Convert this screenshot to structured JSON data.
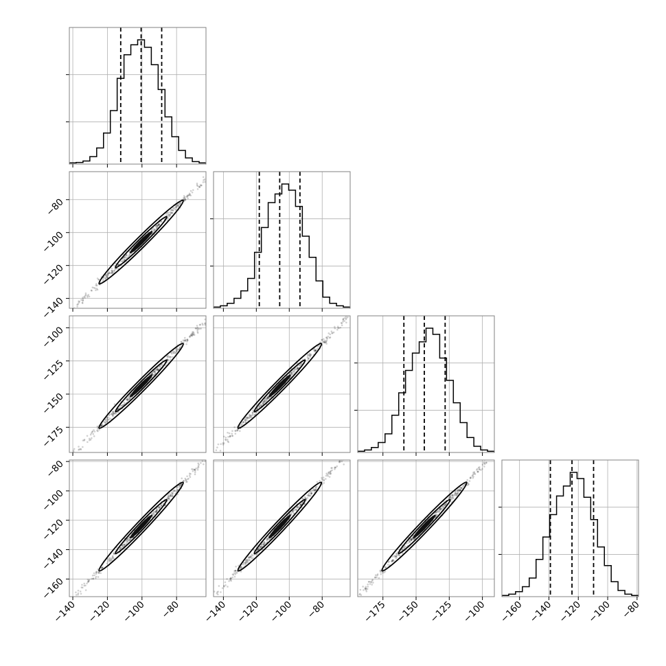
{
  "chart_data": {
    "type": "corner",
    "parameters": [
      {
        "ticks": [
          -140,
          -120,
          -100,
          -80
        ],
        "range": [
          -142,
          -63
        ],
        "quantiles": [
          -112.3,
          -100.5,
          -88.6
        ]
      },
      {
        "ticks": [
          -140,
          -120,
          -100,
          -80
        ],
        "range": [
          -146,
          -63
        ],
        "quantiles": [
          -118.2,
          -105.8,
          -93.5
        ]
      },
      {
        "ticks": [
          -175,
          -150,
          -125,
          -100
        ],
        "range": [
          -194,
          -91
        ],
        "quantiles": [
          -159.2,
          -143.8,
          -128.1
        ]
      },
      {
        "ticks": [
          -160,
          -140,
          -120,
          -100,
          -80
        ],
        "range": [
          -172,
          -79
        ],
        "quantiles": [
          -139.0,
          -124.3,
          -109.6
        ]
      }
    ],
    "histograms": [
      [
        0.01,
        0.013,
        0.025,
        0.06,
        0.13,
        0.25,
        0.43,
        0.69,
        0.88,
        0.96,
        1.0,
        0.94,
        0.8,
        0.6,
        0.38,
        0.22,
        0.11,
        0.05,
        0.02,
        0.01
      ],
      [
        0.01,
        0.02,
        0.04,
        0.08,
        0.14,
        0.24,
        0.45,
        0.65,
        0.85,
        0.92,
        1.0,
        0.95,
        0.82,
        0.58,
        0.41,
        0.22,
        0.09,
        0.04,
        0.02,
        0.01
      ],
      [
        0.01,
        0.02,
        0.04,
        0.08,
        0.15,
        0.3,
        0.48,
        0.66,
        0.8,
        0.89,
        1.0,
        0.95,
        0.76,
        0.58,
        0.4,
        0.24,
        0.12,
        0.05,
        0.02,
        0.01
      ],
      [
        0.01,
        0.02,
        0.04,
        0.08,
        0.15,
        0.3,
        0.48,
        0.66,
        0.81,
        0.89,
        1.0,
        0.95,
        0.8,
        0.62,
        0.4,
        0.25,
        0.12,
        0.05,
        0.02,
        0.01
      ]
    ],
    "grid": true,
    "diagonal": "1D histograms with dashed quantile lines",
    "off_diagonal": "2D scatter with density contours"
  }
}
